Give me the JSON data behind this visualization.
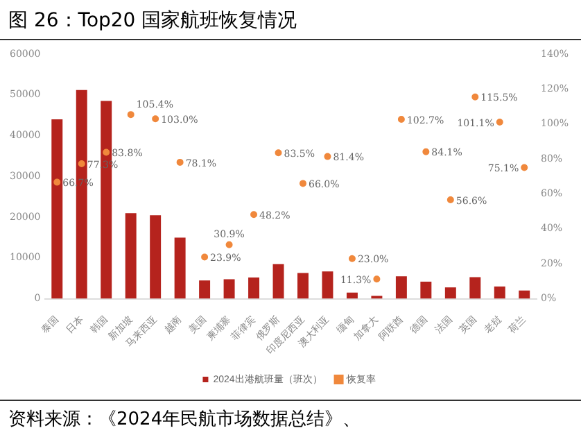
{
  "chart_data": {
    "type": "bar",
    "title": "图 26：Top20 国家航班恢复情况",
    "categories": [
      "泰国",
      "日本",
      "韩国",
      "新加坡",
      "马来西亚",
      "越南",
      "美国",
      "柬埔寨",
      "菲律宾",
      "俄罗斯",
      "印度尼西亚",
      "澳大利亚",
      "缅甸",
      "加拿大",
      "阿联酋",
      "德国",
      "法国",
      "英国",
      "老挝",
      "荷兰"
    ],
    "series": [
      {
        "name": "2024出港航班量（班次）",
        "color": "#b5231d",
        "values": [
          44000,
          51200,
          48500,
          21000,
          20500,
          15000,
          4500,
          4800,
          5200,
          8500,
          6300,
          6700,
          1500,
          700,
          5500,
          4200,
          2800,
          5300,
          3000,
          2000
        ]
      },
      {
        "name": "恢复率",
        "type": "scatter",
        "axis": "y2",
        "color": "#f0883c",
        "values": [
          66.7,
          77.3,
          83.8,
          105.4,
          103.0,
          78.1,
          23.9,
          30.9,
          48.2,
          83.5,
          66.0,
          81.4,
          23.0,
          11.3,
          102.7,
          84.1,
          56.6,
          115.5,
          101.1,
          75.1
        ],
        "value_labels": [
          "66.7%",
          "77.3%",
          "83.8%",
          "105.4%",
          "103.0%",
          "78.1%",
          "23.9%",
          "30.9%",
          "48.2%",
          "83.5%",
          "66.0%",
          "81.4%",
          "23.0%",
          "11.3%",
          "102.7%",
          "84.1%",
          "56.6%",
          "115.5%",
          "101.1%",
          "75.1%"
        ]
      }
    ],
    "ylim": [
      0,
      60000
    ],
    "yticks": [
      0,
      10000,
      20000,
      30000,
      40000,
      50000,
      60000
    ],
    "y2lim": [
      0,
      140
    ],
    "y2ticks": [
      {
        "value": 0,
        "label": "0%"
      },
      {
        "value": 20,
        "label": "20%"
      },
      {
        "value": 40,
        "label": "40%"
      },
      {
        "value": 60,
        "label": "60%"
      },
      {
        "value": 80,
        "label": "80%"
      },
      {
        "value": 100,
        "label": "100%"
      },
      {
        "value": 120,
        "label": "120%"
      },
      {
        "value": 140,
        "label": "140%"
      }
    ],
    "grid": false,
    "legend": "bottom",
    "marker": "circle",
    "annotations": [
      "资料来源：《2024年民航市场数据总结》、"
    ]
  }
}
